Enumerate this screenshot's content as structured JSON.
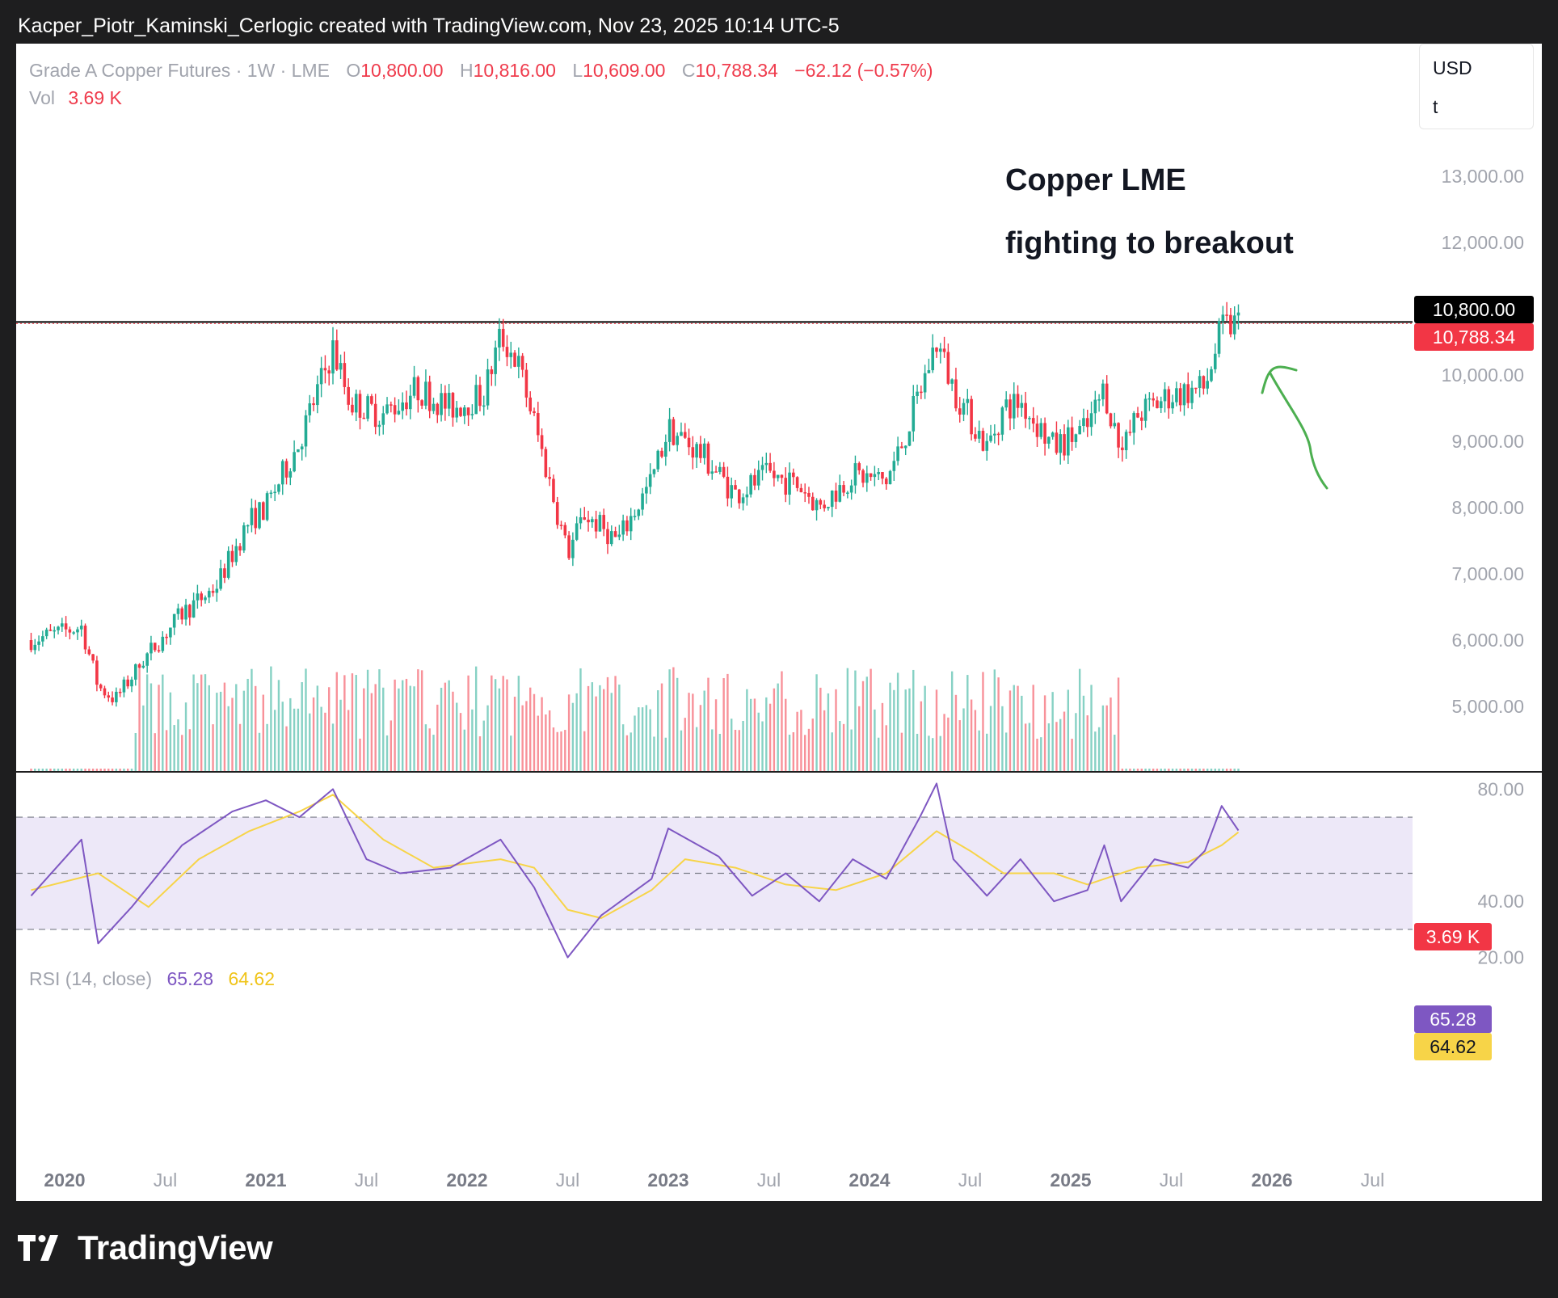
{
  "header": {
    "caption": "Kacper_Piotr_Kaminski_Cerlogic created with TradingView.com, Nov 23, 2025 10:14 UTC-5"
  },
  "legend": {
    "symbol": "Grade A Copper Futures · 1W · LME",
    "open_label": "O",
    "open": "10,800.00",
    "high_label": "H",
    "high": "10,816.00",
    "low_label": "L",
    "low": "10,609.00",
    "close_label": "C",
    "close": "10,788.34",
    "change": "−62.12 (−0.57%)",
    "vol_label": "Vol",
    "vol": "3.69 K"
  },
  "currency_box": {
    "currency": "USD",
    "unit": "t"
  },
  "annotation": {
    "line1": "Copper LME",
    "line2": "fighting to breakout"
  },
  "price_tags": {
    "high": "10,800.00",
    "last": "10,788.34",
    "volume": "3.69 K"
  },
  "rsi_legend": {
    "label": "RSI (14, close)",
    "rsi": "65.28",
    "ma": "64.62"
  },
  "rsi_tags": {
    "rsi": "65.28",
    "ma": "64.62"
  },
  "colors": {
    "up": "#22ab94",
    "down": "#f23645",
    "rsi_line": "#7e57c2",
    "rsi_ma": "#f7d448",
    "rsi_band": "#ede8f8",
    "annotation_arrow": "#4caf50",
    "background": "#1e1e1f"
  },
  "footer": {
    "brand": "TradingView"
  },
  "chart_data": [
    {
      "type": "candlestick",
      "title": "Grade A Copper Futures · 1W · LME",
      "price_axis_ticks": [
        "13,000.00",
        "12,000.00",
        "10,000.00",
        "9,000.00",
        "8,000.00",
        "7,000.00",
        "6,000.00",
        "5,000.00"
      ],
      "ylim": [
        4000,
        14000
      ],
      "time_axis_ticks": [
        "2020",
        "Jul",
        "2021",
        "Jul",
        "2022",
        "Jul",
        "2023",
        "Jul",
        "2024",
        "Jul",
        "2025",
        "Jul",
        "2026",
        "Jul"
      ],
      "horizontal_line": 10800,
      "series": [
        {
          "name": "Weekly close (approx.)",
          "x": [
            "2019-11",
            "2020-02",
            "2020-03",
            "2020-04",
            "2020-06",
            "2020-08",
            "2020-10",
            "2020-12",
            "2021-01",
            "2021-03",
            "2021-05",
            "2021-06",
            "2021-08",
            "2021-10",
            "2021-12",
            "2022-02",
            "2022-03",
            "2022-04",
            "2022-05",
            "2022-06",
            "2022-07",
            "2022-08",
            "2022-10",
            "2022-12",
            "2023-01",
            "2023-03",
            "2023-05",
            "2023-07",
            "2023-09",
            "2023-10",
            "2023-12",
            "2024-02",
            "2024-03",
            "2024-05",
            "2024-06",
            "2024-08",
            "2024-09",
            "2024-10",
            "2024-12",
            "2025-02",
            "2025-03",
            "2025-04",
            "2025-05",
            "2025-07",
            "2025-09",
            "2025-10",
            "2025-11"
          ],
          "values": [
            6000,
            6200,
            5300,
            5100,
            5800,
            6400,
            6800,
            7800,
            8000,
            9000,
            10400,
            9600,
            9400,
            9800,
            9500,
            9700,
            10600,
            10200,
            9300,
            8300,
            7300,
            7900,
            7500,
            8400,
            9200,
            8800,
            8200,
            8500,
            8300,
            8000,
            8500,
            8400,
            9000,
            10500,
            9800,
            8900,
            9500,
            9600,
            8900,
            9200,
            9800,
            8800,
            9400,
            9700,
            9800,
            10700,
            10788
          ]
        }
      ],
      "volume": {
        "last": "3.69 K"
      }
    },
    {
      "type": "line",
      "title": "RSI (14, close)",
      "y_axis_ticks": [
        "80.00",
        "40.00",
        "20.00"
      ],
      "ylim": [
        15,
        85
      ],
      "bands": [
        70,
        50,
        30
      ],
      "series": [
        {
          "name": "RSI",
          "x": [
            "2019-11",
            "2020-02",
            "2020-03",
            "2020-05",
            "2020-08",
            "2020-11",
            "2021-01",
            "2021-03",
            "2021-05",
            "2021-07",
            "2021-09",
            "2021-12",
            "2022-03",
            "2022-05",
            "2022-07",
            "2022-09",
            "2022-12",
            "2023-01",
            "2023-04",
            "2023-06",
            "2023-08",
            "2023-10",
            "2023-12",
            "2024-02",
            "2024-04",
            "2024-05",
            "2024-06",
            "2024-08",
            "2024-10",
            "2024-12",
            "2025-02",
            "2025-03",
            "2025-04",
            "2025-06",
            "2025-08",
            "2025-09",
            "2025-10",
            "2025-11"
          ],
          "values": [
            42,
            62,
            25,
            38,
            60,
            72,
            76,
            70,
            80,
            55,
            50,
            52,
            62,
            45,
            20,
            35,
            48,
            66,
            56,
            42,
            50,
            40,
            55,
            48,
            70,
            82,
            55,
            42,
            55,
            40,
            44,
            60,
            40,
            55,
            52,
            58,
            74,
            65.28
          ]
        },
        {
          "name": "RSI MA",
          "x": [
            "2019-11",
            "2020-03",
            "2020-06",
            "2020-09",
            "2020-12",
            "2021-03",
            "2021-05",
            "2021-08",
            "2021-11",
            "2022-03",
            "2022-05",
            "2022-07",
            "2022-09",
            "2022-12",
            "2023-02",
            "2023-05",
            "2023-08",
            "2023-11",
            "2024-02",
            "2024-05",
            "2024-07",
            "2024-09",
            "2024-12",
            "2025-02",
            "2025-05",
            "2025-08",
            "2025-10",
            "2025-11"
          ],
          "values": [
            44,
            50,
            38,
            55,
            65,
            72,
            78,
            62,
            52,
            55,
            52,
            37,
            34,
            44,
            55,
            52,
            46,
            44,
            50,
            65,
            58,
            50,
            50,
            46,
            52,
            54,
            60,
            64.62
          ]
        }
      ]
    }
  ]
}
